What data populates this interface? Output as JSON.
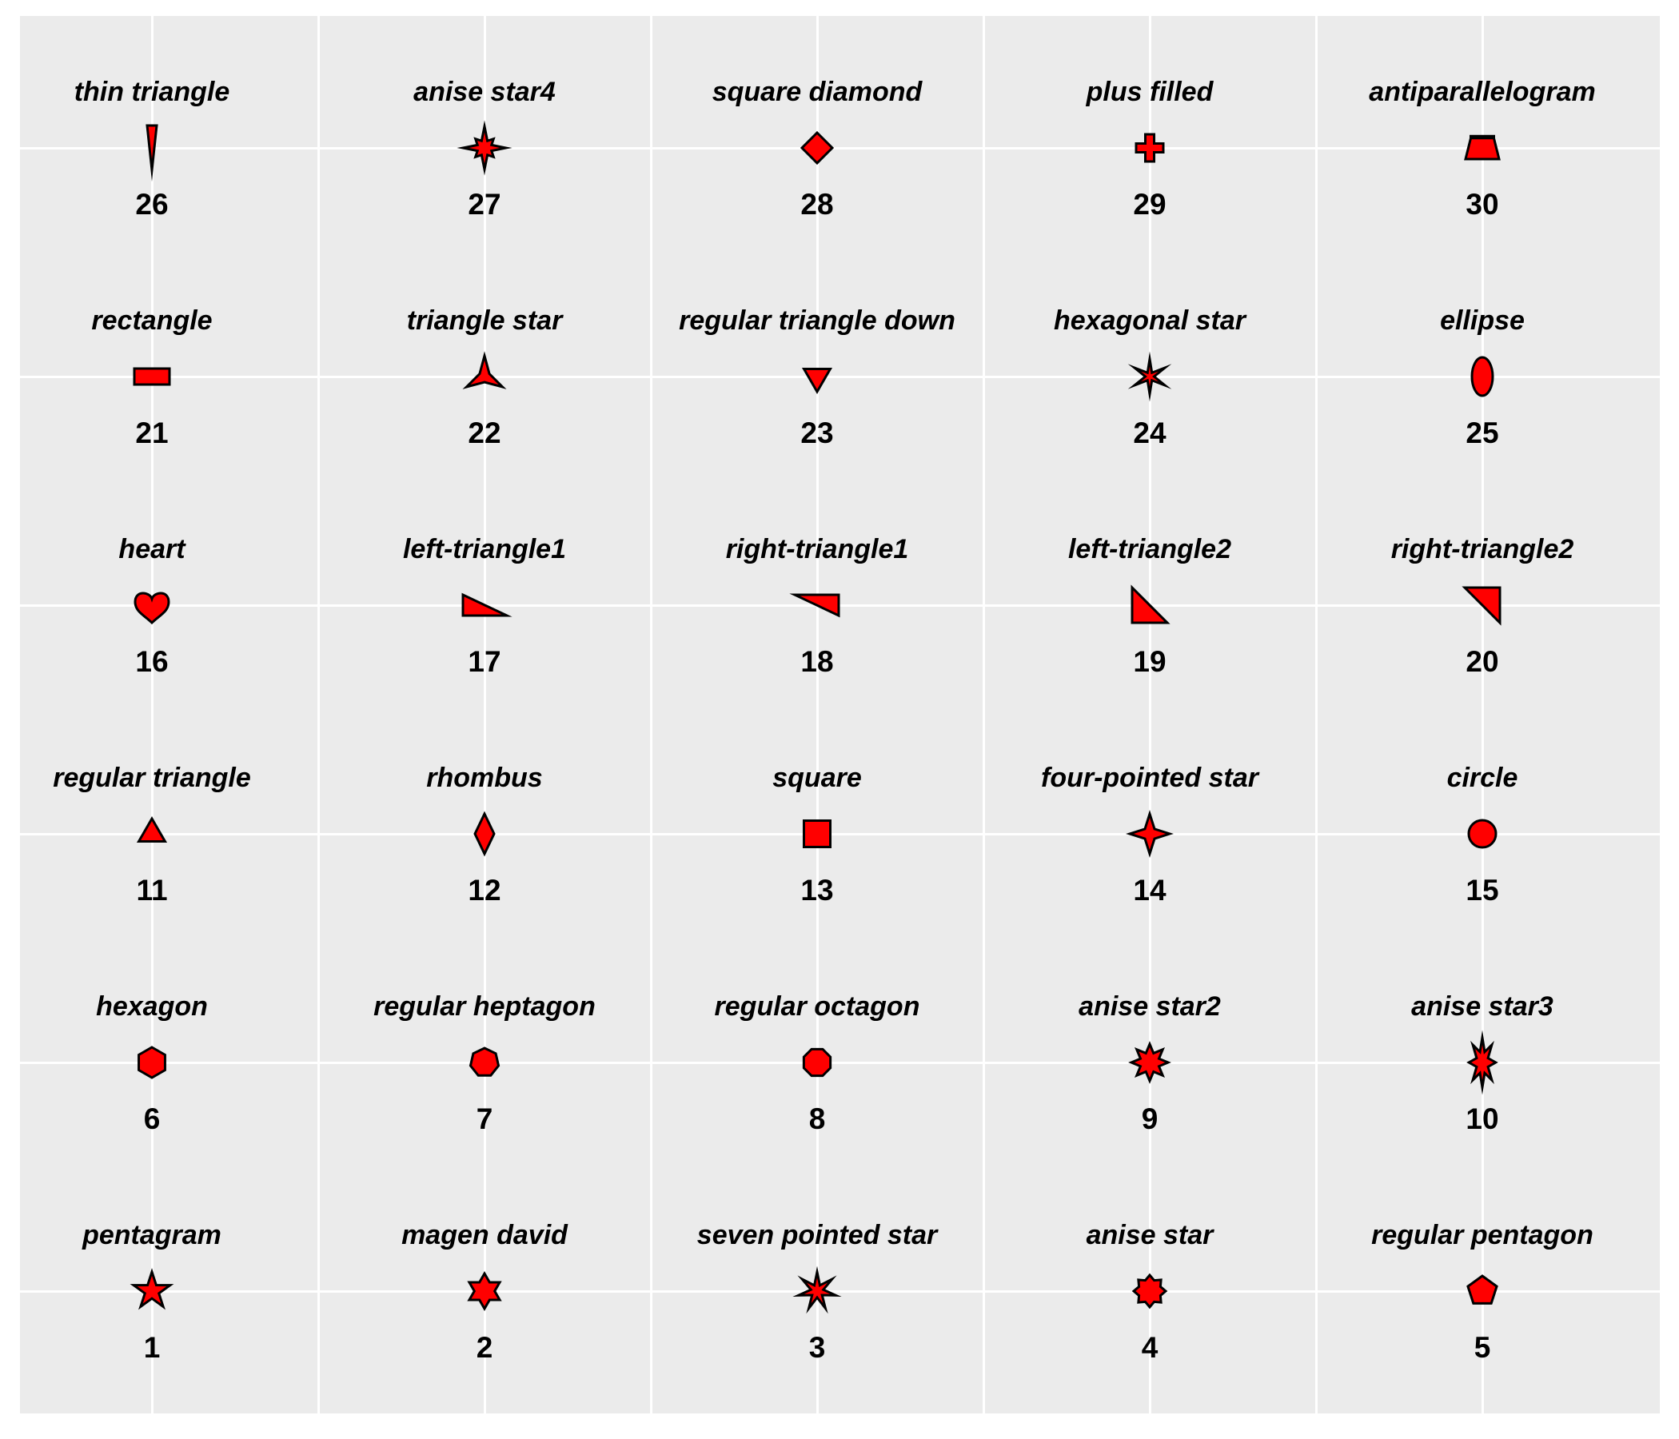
{
  "colors": {
    "page_bg": "#FFFFFF",
    "panel_bg": "#EBEBEB",
    "gridline": "#FFFFFF",
    "marker_fill": "#FF0000",
    "marker_stroke": "#000000",
    "text": "#000000"
  },
  "chart_data": {
    "type": "scatter",
    "title": "",
    "description": "Showcase of 30 named marker shapes arranged in a 6x5 grid; each cell shows the shape name (top), the red marker glyph (middle) and its shape index number (bottom).",
    "layout": {
      "rows": 6,
      "cols": 5,
      "gridlines": "on",
      "legend": "none"
    },
    "cells": [
      {
        "label": "thin triangle",
        "value": "26",
        "marker": "thin-triangle"
      },
      {
        "label": "anise star4",
        "value": "27",
        "marker": "anise-star4"
      },
      {
        "label": "square diamond",
        "value": "28",
        "marker": "square-diamond"
      },
      {
        "label": "plus filled",
        "value": "29",
        "marker": "plus-filled"
      },
      {
        "label": "antiparallelogram",
        "value": "30",
        "marker": "antiparallelogram"
      },
      {
        "label": "rectangle",
        "value": "21",
        "marker": "rectangle"
      },
      {
        "label": "triangle star",
        "value": "22",
        "marker": "triangle-star"
      },
      {
        "label": "regular triangle down",
        "value": "23",
        "marker": "triangle-down"
      },
      {
        "label": "hexagonal star",
        "value": "24",
        "marker": "hexagonal-star"
      },
      {
        "label": "ellipse",
        "value": "25",
        "marker": "ellipse"
      },
      {
        "label": "heart",
        "value": "16",
        "marker": "heart"
      },
      {
        "label": "left-triangle1",
        "value": "17",
        "marker": "left-triangle1"
      },
      {
        "label": "right-triangle1",
        "value": "18",
        "marker": "right-triangle1"
      },
      {
        "label": "left-triangle2",
        "value": "19",
        "marker": "left-triangle2"
      },
      {
        "label": "right-triangle2",
        "value": "20",
        "marker": "right-triangle2"
      },
      {
        "label": "regular triangle",
        "value": "11",
        "marker": "triangle-up"
      },
      {
        "label": "rhombus",
        "value": "12",
        "marker": "rhombus"
      },
      {
        "label": "square",
        "value": "13",
        "marker": "square"
      },
      {
        "label": "four-pointed star",
        "value": "14",
        "marker": "four-pointed-star"
      },
      {
        "label": "circle",
        "value": "15",
        "marker": "circle"
      },
      {
        "label": "hexagon",
        "value": "6",
        "marker": "hexagon"
      },
      {
        "label": "regular heptagon",
        "value": "7",
        "marker": "heptagon"
      },
      {
        "label": "regular octagon",
        "value": "8",
        "marker": "octagon"
      },
      {
        "label": "anise star2",
        "value": "9",
        "marker": "anise-star2"
      },
      {
        "label": "anise star3",
        "value": "10",
        "marker": "anise-star3"
      },
      {
        "label": "pentagram",
        "value": "1",
        "marker": "pentagram"
      },
      {
        "label": "magen david",
        "value": "2",
        "marker": "magen-david"
      },
      {
        "label": "seven pointed star",
        "value": "3",
        "marker": "seven-pointed-star"
      },
      {
        "label": "anise star",
        "value": "4",
        "marker": "anise-star"
      },
      {
        "label": "regular pentagon",
        "value": "5",
        "marker": "pentagon"
      }
    ]
  }
}
